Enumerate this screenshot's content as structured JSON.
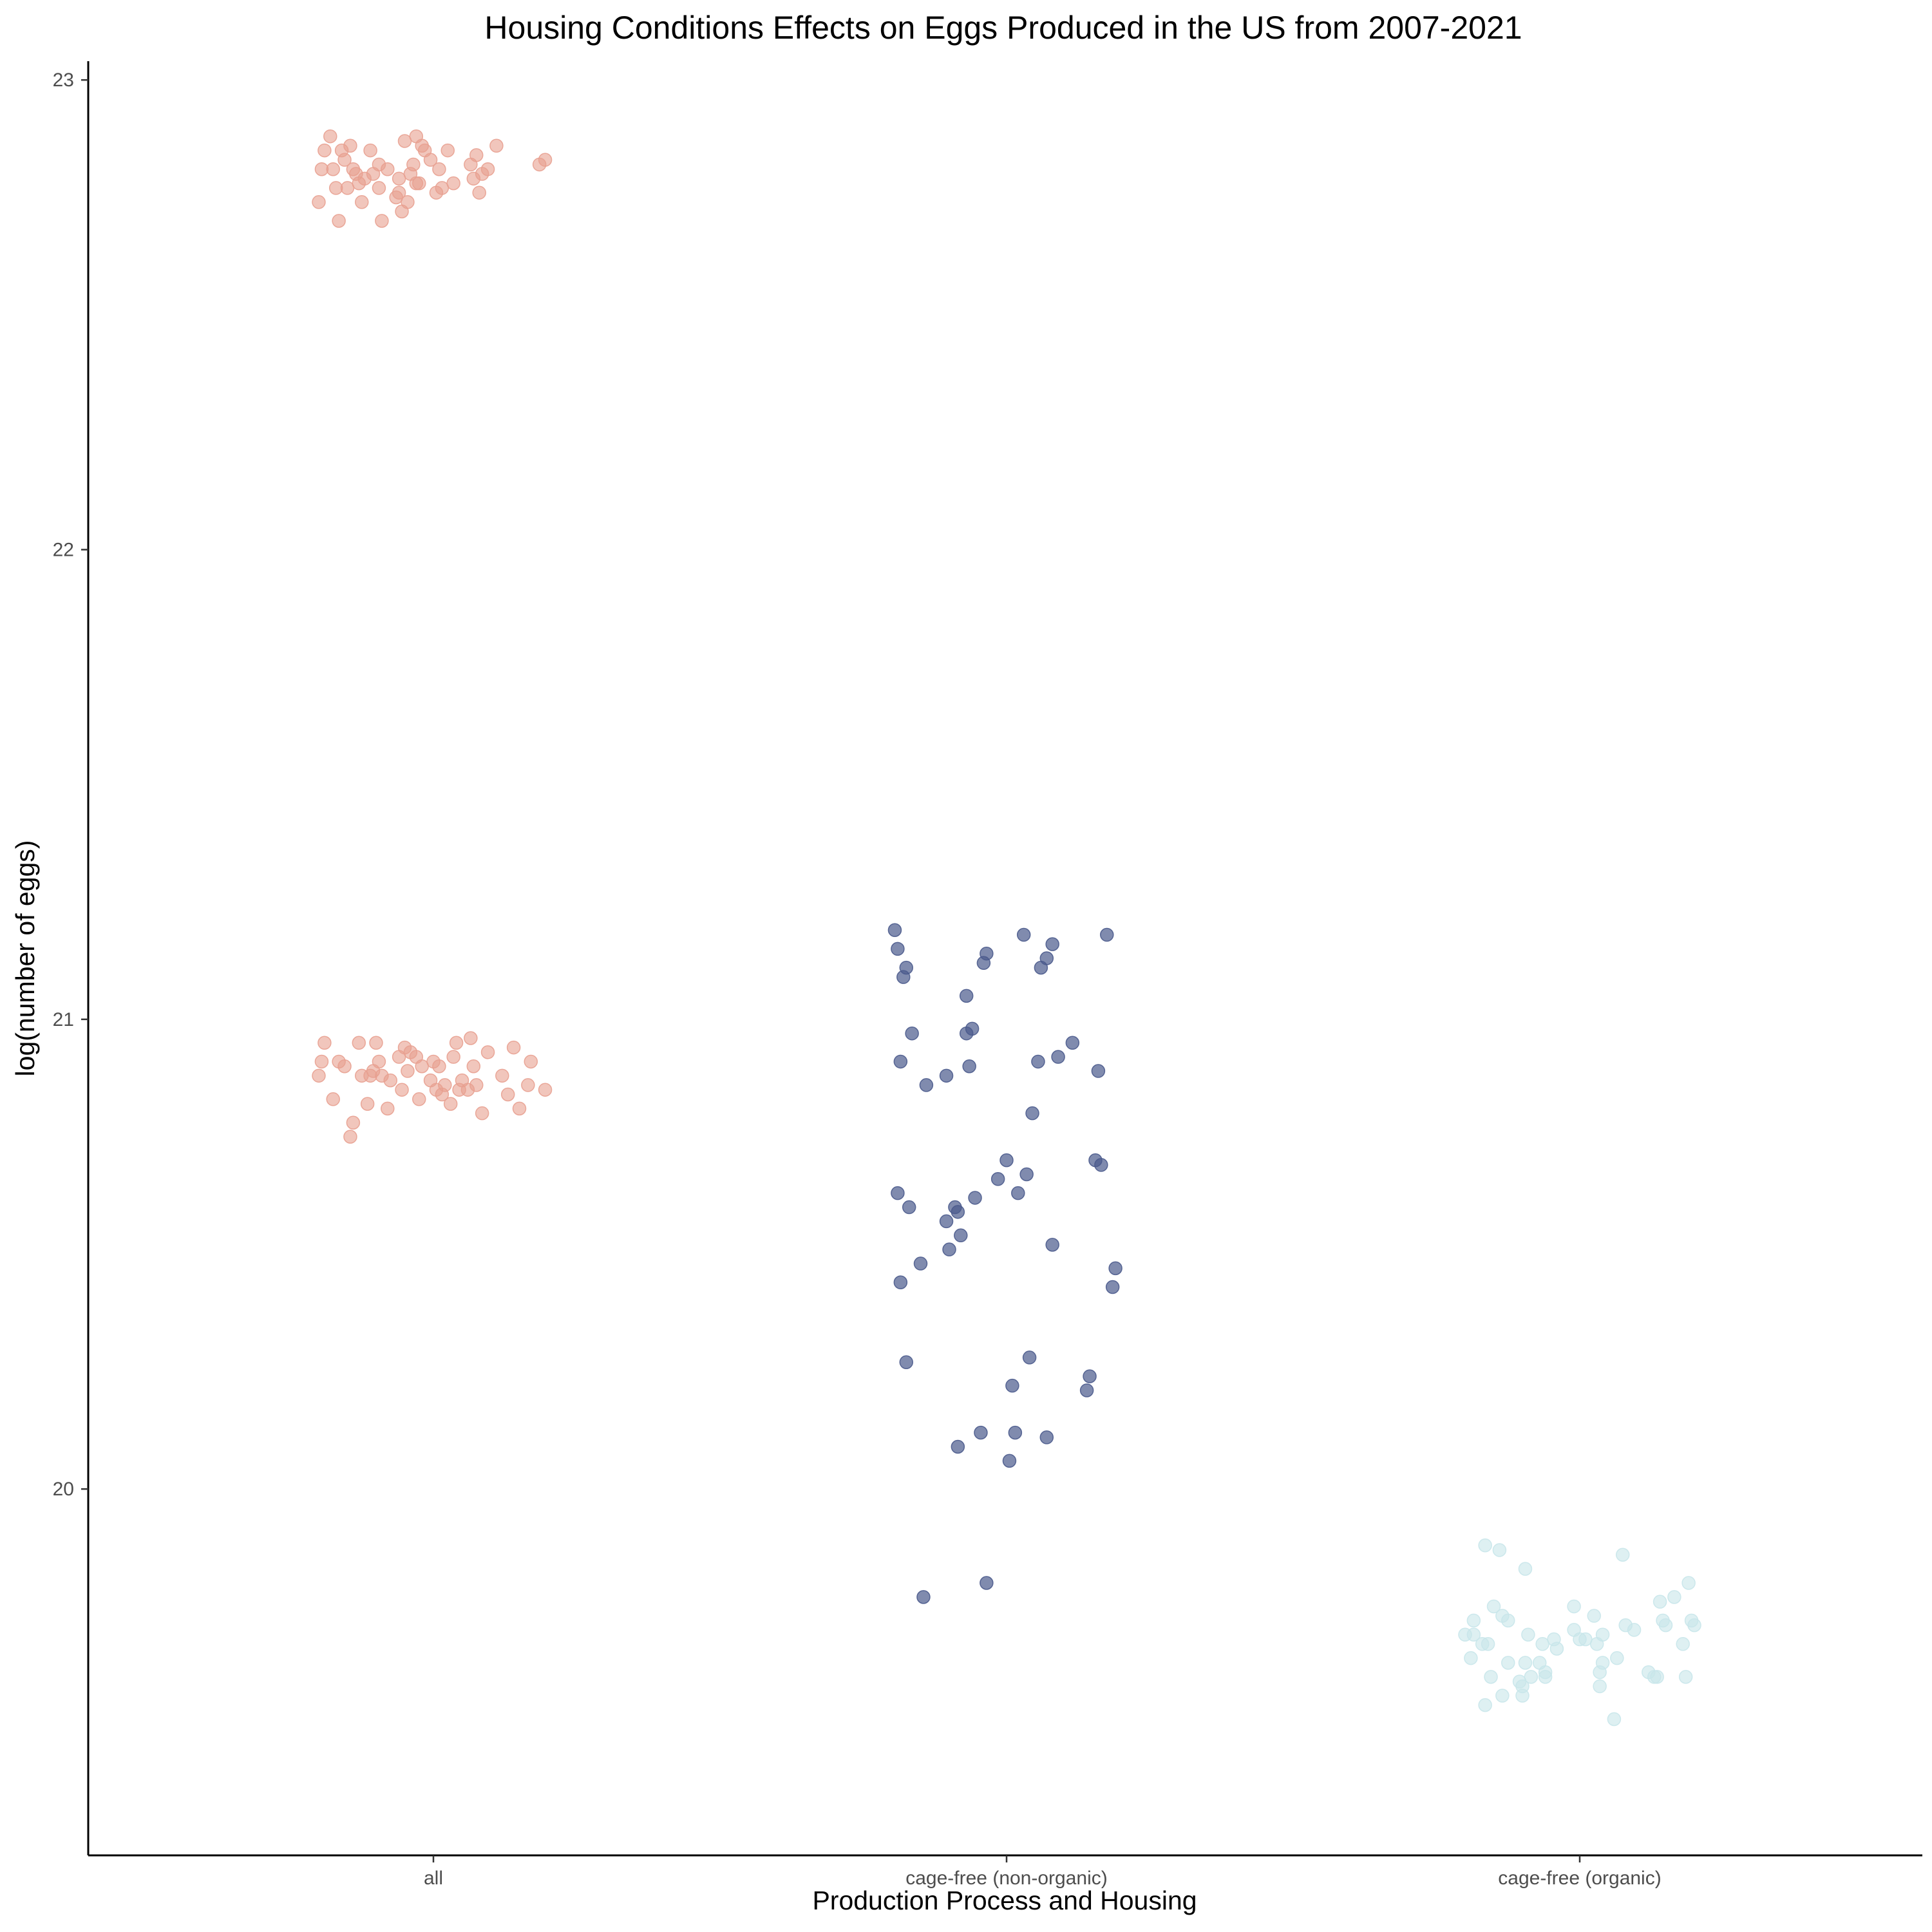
{
  "chart_data": {
    "type": "scatter",
    "title": "Housing Conditions Effects on Eggs Produced in the US from 2007-2021",
    "xlabel": "Production Process and Housing",
    "ylabel": "log(number of eggs)",
    "categories": [
      "all",
      "cage-free (non-organic)",
      "cage-free (organic)"
    ],
    "y_ticks": [
      20,
      21,
      22,
      23
    ],
    "ylim": [
      19.22,
      23.04
    ],
    "grid": false,
    "legend": "none",
    "colors": {
      "all": "#E8A090",
      "cage-free (non-organic)": "#4A5A8C",
      "cage-free (organic)": "#C8E6EA"
    },
    "series": [
      {
        "category": "all",
        "points": [
          [
            -0.4,
            22.74
          ],
          [
            -0.39,
            22.81
          ],
          [
            -0.38,
            22.85
          ],
          [
            -0.36,
            22.88
          ],
          [
            -0.35,
            22.81
          ],
          [
            -0.34,
            22.77
          ],
          [
            -0.33,
            22.7
          ],
          [
            -0.32,
            22.85
          ],
          [
            -0.31,
            22.83
          ],
          [
            -0.3,
            22.77
          ],
          [
            -0.29,
            22.86
          ],
          [
            -0.28,
            22.81
          ],
          [
            -0.27,
            22.8
          ],
          [
            -0.26,
            22.78
          ],
          [
            -0.25,
            22.74
          ],
          [
            -0.24,
            22.79
          ],
          [
            -0.22,
            22.85
          ],
          [
            -0.21,
            22.8
          ],
          [
            -0.19,
            22.82
          ],
          [
            -0.18,
            22.7
          ],
          [
            -0.16,
            22.81
          ],
          [
            -0.13,
            22.75
          ],
          [
            -0.12,
            22.79
          ],
          [
            -0.11,
            22.72
          ],
          [
            -0.1,
            22.87
          ],
          [
            -0.09,
            22.74
          ],
          [
            -0.08,
            22.8
          ],
          [
            -0.07,
            22.82
          ],
          [
            -0.06,
            22.88
          ],
          [
            -0.05,
            22.78
          ],
          [
            -0.04,
            22.86
          ],
          [
            -0.03,
            22.85
          ],
          [
            -0.01,
            22.83
          ],
          [
            0.01,
            22.76
          ],
          [
            0.02,
            22.81
          ],
          [
            0.03,
            22.77
          ],
          [
            0.05,
            22.85
          ],
          [
            0.13,
            22.82
          ],
          [
            0.14,
            22.79
          ],
          [
            0.15,
            22.84
          ],
          [
            0.16,
            22.76
          ],
          [
            0.17,
            22.8
          ],
          [
            0.19,
            22.81
          ],
          [
            0.22,
            22.86
          ],
          [
            0.37,
            22.82
          ],
          [
            0.39,
            22.83
          ],
          [
            -0.19,
            22.77
          ],
          [
            -0.12,
            22.76
          ],
          [
            -0.06,
            22.78
          ],
          [
            0.07,
            22.78
          ],
          [
            -0.4,
            20.88
          ],
          [
            -0.39,
            20.91
          ],
          [
            -0.38,
            20.95
          ],
          [
            -0.35,
            20.83
          ],
          [
            -0.33,
            20.91
          ],
          [
            -0.31,
            20.9
          ],
          [
            -0.29,
            20.75
          ],
          [
            -0.28,
            20.78
          ],
          [
            -0.26,
            20.95
          ],
          [
            -0.25,
            20.88
          ],
          [
            -0.23,
            20.82
          ],
          [
            -0.22,
            20.88
          ],
          [
            -0.21,
            20.89
          ],
          [
            -0.2,
            20.95
          ],
          [
            -0.19,
            20.91
          ],
          [
            -0.18,
            20.88
          ],
          [
            -0.16,
            20.81
          ],
          [
            -0.15,
            20.87
          ],
          [
            -0.12,
            20.92
          ],
          [
            -0.11,
            20.85
          ],
          [
            -0.1,
            20.94
          ],
          [
            -0.09,
            20.89
          ],
          [
            -0.08,
            20.93
          ],
          [
            -0.06,
            20.92
          ],
          [
            -0.05,
            20.83
          ],
          [
            -0.04,
            20.9
          ],
          [
            -0.01,
            20.87
          ],
          [
            0.0,
            20.91
          ],
          [
            0.01,
            20.85
          ],
          [
            0.02,
            20.9
          ],
          [
            0.03,
            20.84
          ],
          [
            0.04,
            20.86
          ],
          [
            0.06,
            20.82
          ],
          [
            0.07,
            20.92
          ],
          [
            0.08,
            20.95
          ],
          [
            0.09,
            20.85
          ],
          [
            0.1,
            20.87
          ],
          [
            0.12,
            20.85
          ],
          [
            0.13,
            20.96
          ],
          [
            0.14,
            20.9
          ],
          [
            0.17,
            20.8
          ],
          [
            0.19,
            20.93
          ],
          [
            0.24,
            20.88
          ],
          [
            0.26,
            20.84
          ],
          [
            0.28,
            20.94
          ],
          [
            0.3,
            20.81
          ],
          [
            0.33,
            20.86
          ],
          [
            0.34,
            20.91
          ],
          [
            0.39,
            20.85
          ],
          [
            0.15,
            20.86
          ]
        ]
      },
      {
        "category": "cage-free (non-organic)",
        "points": [
          [
            -0.39,
            21.19
          ],
          [
            -0.38,
            21.15
          ],
          [
            -0.37,
            20.91
          ],
          [
            -0.36,
            21.09
          ],
          [
            -0.35,
            21.11
          ],
          [
            -0.38,
            20.63
          ],
          [
            -0.37,
            20.44
          ],
          [
            -0.35,
            20.27
          ],
          [
            -0.34,
            20.6
          ],
          [
            -0.33,
            20.97
          ],
          [
            -0.3,
            20.48
          ],
          [
            -0.29,
            19.77
          ],
          [
            -0.28,
            20.86
          ],
          [
            -0.21,
            20.88
          ],
          [
            -0.21,
            20.57
          ],
          [
            -0.2,
            20.51
          ],
          [
            -0.18,
            20.6
          ],
          [
            -0.17,
            20.59
          ],
          [
            -0.17,
            20.09
          ],
          [
            -0.16,
            20.54
          ],
          [
            -0.14,
            21.05
          ],
          [
            -0.14,
            20.97
          ],
          [
            -0.13,
            20.9
          ],
          [
            -0.12,
            20.98
          ],
          [
            -0.11,
            20.62
          ],
          [
            -0.09,
            20.12
          ],
          [
            -0.08,
            21.12
          ],
          [
            -0.07,
            21.14
          ],
          [
            -0.07,
            19.8
          ],
          [
            -0.03,
            20.66
          ],
          [
            0.0,
            20.7
          ],
          [
            0.01,
            20.06
          ],
          [
            0.02,
            20.22
          ],
          [
            0.03,
            20.12
          ],
          [
            0.04,
            20.63
          ],
          [
            0.06,
            21.18
          ],
          [
            0.07,
            20.67
          ],
          [
            0.08,
            20.28
          ],
          [
            0.09,
            20.8
          ],
          [
            0.11,
            20.91
          ],
          [
            0.12,
            21.11
          ],
          [
            0.14,
            21.13
          ],
          [
            0.14,
            20.11
          ],
          [
            0.16,
            21.16
          ],
          [
            0.16,
            20.52
          ],
          [
            0.18,
            20.92
          ],
          [
            0.23,
            20.95
          ],
          [
            0.28,
            20.21
          ],
          [
            0.29,
            20.24
          ],
          [
            0.31,
            20.7
          ],
          [
            0.32,
            20.89
          ],
          [
            0.33,
            20.69
          ],
          [
            0.35,
            21.18
          ],
          [
            0.37,
            20.43
          ],
          [
            0.38,
            20.47
          ]
        ]
      },
      {
        "category": "cage-free (organic)",
        "points": [
          [
            -0.4,
            19.69
          ],
          [
            -0.38,
            19.64
          ],
          [
            -0.37,
            19.72
          ],
          [
            -0.37,
            19.69
          ],
          [
            -0.34,
            19.67
          ],
          [
            -0.33,
            19.54
          ],
          [
            -0.33,
            19.88
          ],
          [
            -0.32,
            19.67
          ],
          [
            -0.31,
            19.6
          ],
          [
            -0.3,
            19.75
          ],
          [
            -0.28,
            19.87
          ],
          [
            -0.27,
            19.73
          ],
          [
            -0.25,
            19.63
          ],
          [
            -0.25,
            19.72
          ],
          [
            -0.21,
            19.59
          ],
          [
            -0.2,
            19.56
          ],
          [
            -0.19,
            19.83
          ],
          [
            -0.19,
            19.63
          ],
          [
            -0.18,
            19.69
          ],
          [
            -0.17,
            19.6
          ],
          [
            -0.14,
            19.63
          ],
          [
            -0.13,
            19.67
          ],
          [
            -0.12,
            19.6
          ],
          [
            -0.09,
            19.68
          ],
          [
            -0.02,
            19.75
          ],
          [
            -0.02,
            19.7
          ],
          [
            0.02,
            19.68
          ],
          [
            0.05,
            19.73
          ],
          [
            0.06,
            19.67
          ],
          [
            0.07,
            19.58
          ],
          [
            0.08,
            19.63
          ],
          [
            0.08,
            19.69
          ],
          [
            0.07,
            19.61
          ],
          [
            0.12,
            19.51
          ],
          [
            0.13,
            19.64
          ],
          [
            0.15,
            19.86
          ],
          [
            0.16,
            19.71
          ],
          [
            0.19,
            19.7
          ],
          [
            0.24,
            19.61
          ],
          [
            0.26,
            19.6
          ],
          [
            0.28,
            19.76
          ],
          [
            0.29,
            19.72
          ],
          [
            0.3,
            19.71
          ],
          [
            0.33,
            19.77
          ],
          [
            0.36,
            19.67
          ],
          [
            0.37,
            19.6
          ],
          [
            0.38,
            19.8
          ],
          [
            0.39,
            19.72
          ],
          [
            0.4,
            19.71
          ],
          [
            -0.27,
            19.56
          ],
          [
            -0.2,
            19.58
          ],
          [
            -0.12,
            19.61
          ],
          [
            0.0,
            19.68
          ],
          [
            0.27,
            19.6
          ],
          [
            -0.08,
            19.66
          ]
        ]
      }
    ]
  }
}
